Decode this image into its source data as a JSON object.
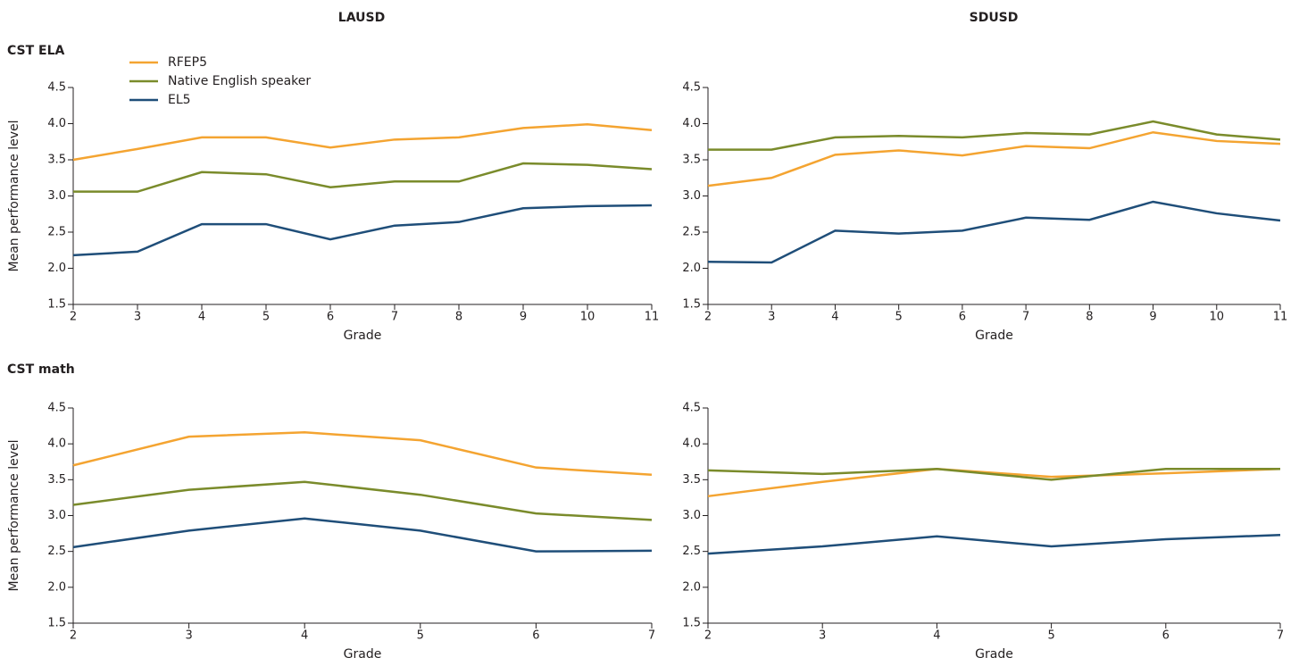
{
  "column_titles": [
    "LAUSD",
    "SDUSD"
  ],
  "row_titles": [
    "CST ELA",
    "CST math"
  ],
  "chart_data": [
    {
      "type": "line",
      "y_label": "Mean performance level",
      "x_label": "Grade",
      "x": [
        2,
        3,
        4,
        5,
        6,
        7,
        8,
        9,
        10,
        11
      ],
      "xlim": [
        2,
        11
      ],
      "xticks": [
        2,
        3,
        4,
        5,
        6,
        7,
        8,
        9,
        10,
        11
      ],
      "ylim": [
        1.5,
        4.5
      ],
      "yticks": [
        1.5,
        {
          "value": 2,
          "label": "2.0"
        },
        2.5,
        {
          "value": 3,
          "label": "3.0"
        },
        3.5,
        {
          "value": 4,
          "label": "4.0"
        },
        4.5
      ],
      "series": [
        {
          "name": "RFEP5",
          "color": "#f4a431",
          "values": [
            3.5,
            3.65,
            3.81,
            3.81,
            3.67,
            3.78,
            3.81,
            3.94,
            3.99,
            3.91
          ]
        },
        {
          "name": "Native English speaker",
          "color": "#7a8b2b",
          "values": [
            3.06,
            3.06,
            3.33,
            3.3,
            3.12,
            3.2,
            3.2,
            3.45,
            3.43,
            3.37
          ]
        },
        {
          "name": "EL5",
          "color": "#1f4e79",
          "values": [
            2.18,
            2.23,
            2.61,
            2.61,
            2.4,
            2.59,
            2.64,
            2.83,
            2.86,
            2.87
          ]
        }
      ]
    },
    {
      "type": "line",
      "x_label": "Grade",
      "x": [
        2,
        3,
        4,
        5,
        6,
        7,
        8,
        9,
        10,
        11
      ],
      "xlim": [
        2,
        11
      ],
      "xticks": [
        2,
        3,
        4,
        5,
        6,
        7,
        8,
        9,
        10,
        11
      ],
      "ylim": [
        1.5,
        4.5
      ],
      "yticks": [
        1.5,
        {
          "value": 2,
          "label": "2.0"
        },
        2.5,
        {
          "value": 3,
          "label": "3.0"
        },
        3.5,
        {
          "value": 4,
          "label": "4.0"
        },
        4.5
      ],
      "series": [
        {
          "color": "#f4a431",
          "values": [
            3.14,
            3.25,
            3.57,
            3.63,
            3.56,
            3.69,
            3.66,
            3.88,
            3.76,
            3.72
          ]
        },
        {
          "color": "#7a8b2b",
          "values": [
            3.64,
            3.64,
            3.81,
            3.83,
            3.81,
            3.87,
            3.85,
            4.03,
            3.85,
            3.78
          ]
        },
        {
          "color": "#1f4e79",
          "values": [
            2.09,
            2.08,
            2.52,
            2.48,
            2.52,
            2.7,
            2.67,
            2.92,
            2.76,
            2.66
          ]
        }
      ]
    },
    {
      "type": "line",
      "y_label": "Mean performance level",
      "x_label": "Grade",
      "x": [
        2,
        3,
        4,
        5,
        6,
        7
      ],
      "xlim": [
        2,
        7
      ],
      "xticks": [
        2,
        3,
        4,
        5,
        6,
        7
      ],
      "ylim": [
        1.5,
        4.5
      ],
      "yticks": [
        1.5,
        {
          "value": 2,
          "label": "2.0"
        },
        2.5,
        {
          "value": 3,
          "label": "3.0"
        },
        3.5,
        {
          "value": 4,
          "label": "4.0"
        },
        4.5
      ],
      "series": [
        {
          "color": "#f4a431",
          "values": [
            3.7,
            4.1,
            4.16,
            4.05,
            3.67,
            3.57
          ]
        },
        {
          "color": "#7a8b2b",
          "values": [
            3.15,
            3.36,
            3.47,
            3.29,
            3.03,
            2.94
          ]
        },
        {
          "color": "#1f4e79",
          "values": [
            2.56,
            2.79,
            2.96,
            2.79,
            2.5,
            2.51
          ]
        }
      ]
    },
    {
      "type": "line",
      "x_label": "Grade",
      "x": [
        2,
        3,
        4,
        5,
        6,
        7
      ],
      "xlim": [
        2,
        7
      ],
      "xticks": [
        2,
        3,
        4,
        5,
        6,
        7
      ],
      "ylim": [
        1.5,
        4.5
      ],
      "yticks": [
        1.5,
        {
          "value": 2,
          "label": "2.0"
        },
        2.5,
        {
          "value": 3,
          "label": "3.0"
        },
        3.5,
        {
          "value": 4,
          "label": "4.0"
        },
        4.5
      ],
      "series": [
        {
          "color": "#f4a431",
          "values": [
            3.27,
            3.47,
            3.65,
            3.54,
            3.59,
            3.65
          ]
        },
        {
          "color": "#7a8b2b",
          "values": [
            3.63,
            3.58,
            3.65,
            3.5,
            3.65,
            3.65
          ]
        },
        {
          "color": "#1f4e79",
          "values": [
            2.47,
            2.57,
            2.71,
            2.57,
            2.67,
            2.73
          ]
        }
      ]
    }
  ]
}
